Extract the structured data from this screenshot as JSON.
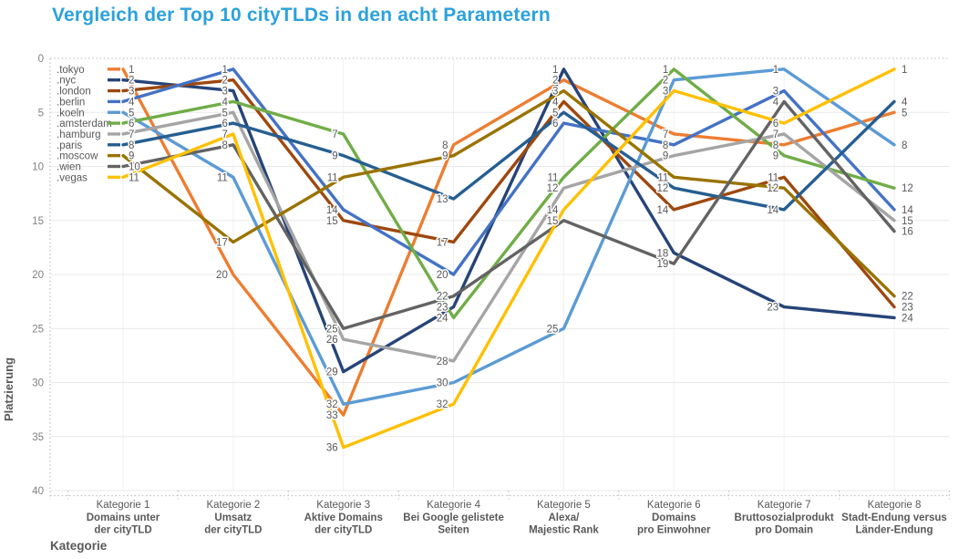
{
  "title": "Vergleich der Top 10 cityTLDs in den acht Parametern",
  "title_color": "#2BA2DB",
  "axes": {
    "x_title": "Kategorie",
    "y_title": "Platzierung",
    "y_ticks": [
      0,
      5,
      10,
      15,
      20,
      25,
      30,
      35,
      40
    ],
    "text_color": "#595959",
    "tick_color": "#808080",
    "grid_color": "#E9E9E9",
    "border_color": "#C6C6C6"
  },
  "chart_data": {
    "type": "line",
    "title": "Vergleich der Top 10 cityTLDs in den acht Parametern",
    "xlabel": "Kategorie",
    "ylabel": "Platzierung",
    "ylim": [
      0,
      40
    ],
    "y_inverted": true,
    "grid": true,
    "legend_position": "left-inside",
    "categories": [
      {
        "label": "Kategorie 1",
        "sub": [
          "Domains unter",
          "der cityTLD"
        ]
      },
      {
        "label": "Kategorie 2",
        "sub": [
          "Umsatz",
          "der cityTLD"
        ]
      },
      {
        "label": "Kategorie 3",
        "sub": [
          "Aktive Domains",
          "der cityTLD"
        ]
      },
      {
        "label": "Kategorie 4",
        "sub": [
          "Bei Google gelistete",
          "Seiten"
        ]
      },
      {
        "label": "Kategorie 5",
        "sub": [
          "Alexa/",
          "Majestic Rank"
        ]
      },
      {
        "label": "Kategorie 6",
        "sub": [
          "Domains",
          "pro Einwohner"
        ]
      },
      {
        "label": "Kategorie 7",
        "sub": [
          "Bruttosozialprodukt",
          "pro Domain"
        ]
      },
      {
        "label": "Kategorie 8",
        "sub": [
          "Stadt-Endung versus",
          "Länder-Endung"
        ]
      }
    ],
    "series": [
      {
        "name": ".tokyo",
        "color": "#ED7D31",
        "values": [
          1,
          20,
          33,
          8,
          2,
          7,
          8,
          5
        ]
      },
      {
        "name": ".nyc",
        "color": "#264478",
        "values": [
          2,
          3,
          29,
          23,
          1,
          18,
          23,
          24
        ]
      },
      {
        "name": ".london",
        "color": "#9E480E",
        "values": [
          3,
          2,
          15,
          17,
          4,
          14,
          11,
          23
        ]
      },
      {
        "name": ".berlin",
        "color": "#4472C4",
        "values": [
          4,
          1,
          14,
          20,
          6,
          8,
          3,
          14
        ]
      },
      {
        "name": ".koeln",
        "color": "#5B9BD5",
        "values": [
          5,
          11,
          32,
          30,
          25,
          2,
          1,
          8
        ]
      },
      {
        "name": ".amsterdam",
        "color": "#70AD47",
        "values": [
          6,
          4,
          7,
          24,
          11,
          1,
          9,
          12
        ]
      },
      {
        "name": ".hamburg",
        "color": "#A5A5A5",
        "values": [
          7,
          5,
          26,
          28,
          12,
          9,
          7,
          15
        ]
      },
      {
        "name": ".paris",
        "color": "#255E91",
        "values": [
          8,
          6,
          9,
          13,
          5,
          12,
          14,
          4
        ]
      },
      {
        "name": ".moscow",
        "color": "#997300",
        "values": [
          9,
          17,
          11,
          9,
          3,
          11,
          12,
          22
        ]
      },
      {
        "name": ".wien",
        "color": "#636363",
        "values": [
          10,
          8,
          25,
          22,
          15,
          19,
          4,
          16
        ]
      },
      {
        "name": ".vegas",
        "color": "#FFC000",
        "values": [
          11,
          7,
          36,
          32,
          14,
          3,
          6,
          1
        ]
      }
    ]
  }
}
